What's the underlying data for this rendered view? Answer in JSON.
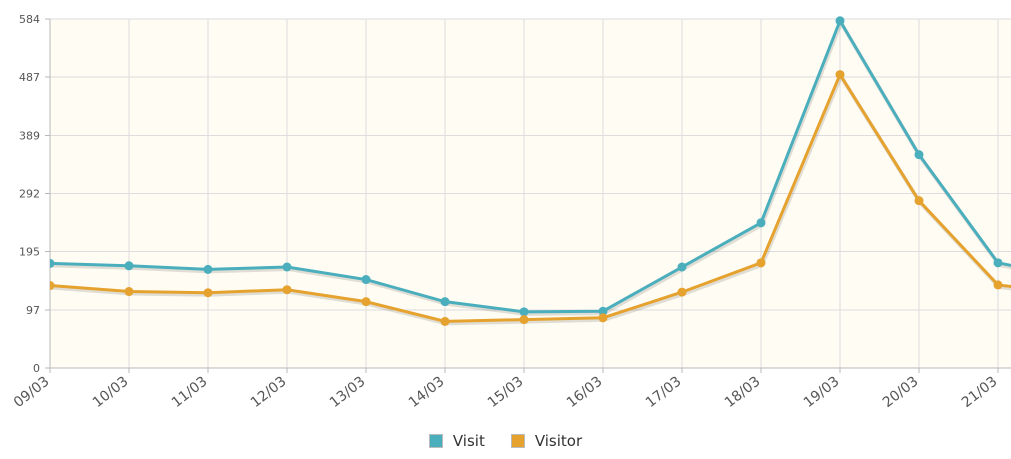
{
  "chart_data": {
    "type": "line",
    "categories": [
      "09/03",
      "10/03",
      "11/03",
      "12/03",
      "13/03",
      "14/03",
      "15/03",
      "16/03",
      "17/03",
      "18/03",
      "19/03",
      "20/03",
      "21/03"
    ],
    "yticks": [
      "0",
      "97",
      "195",
      "292",
      "389",
      "487",
      "584"
    ],
    "ylim": [
      0,
      584
    ],
    "grid": true,
    "legend_position": "bottom",
    "series": [
      {
        "name": "Visit",
        "color": "#4aaebd",
        "values": [
          175,
          171,
          165,
          169,
          148,
          111,
          94,
          95,
          169,
          243,
          581,
          357,
          176
        ]
      },
      {
        "name": "Visitor",
        "color": "#e5a22f",
        "values": [
          138,
          128,
          126,
          131,
          111,
          78,
          81,
          84,
          127,
          176,
          491,
          280,
          139
        ]
      }
    ],
    "extra_points": {
      "Visit": 150,
      "Visitor": 123
    }
  }
}
